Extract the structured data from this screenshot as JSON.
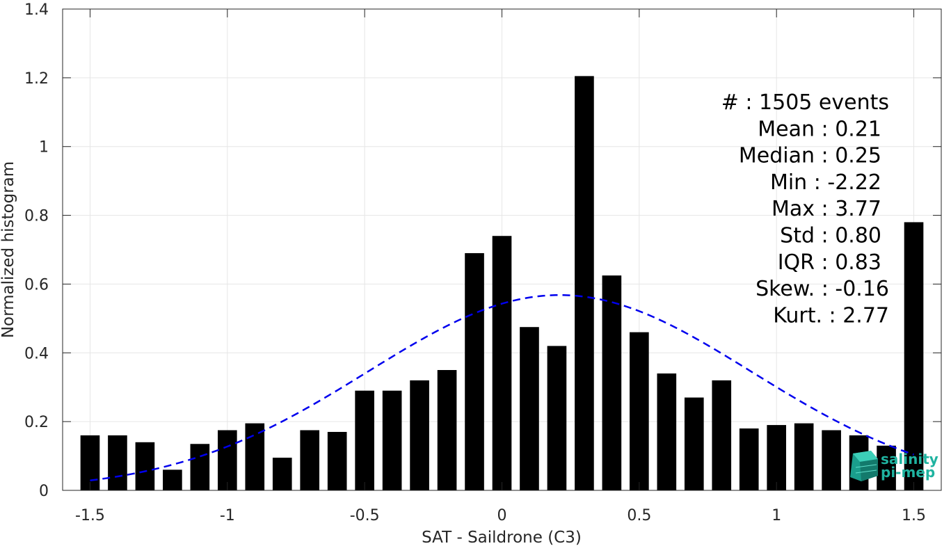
{
  "chart_data": {
    "type": "bar",
    "xlabel": "SAT - Saildrone (C3)",
    "ylabel": "Normalized histogram",
    "xlim": [
      -1.6,
      1.6
    ],
    "ylim": [
      0,
      1.4
    ],
    "xticks": [
      -1.5,
      -1,
      -0.5,
      0,
      0.5,
      1,
      1.5
    ],
    "xtick_labels": [
      "-1.5",
      "-1",
      "-0.5",
      "0",
      "0.5",
      "1",
      "1.5"
    ],
    "yticks": [
      0,
      0.2,
      0.4,
      0.6,
      0.8,
      1,
      1.2,
      1.4
    ],
    "ytick_labels": [
      "0",
      "0.2",
      "0.4",
      "0.6",
      "0.8",
      "1",
      "1.2",
      "1.4"
    ],
    "grid": true,
    "bar_width": 0.07,
    "bars": {
      "x": [
        -1.5,
        -1.4,
        -1.3,
        -1.2,
        -1.1,
        -1.0,
        -0.9,
        -0.8,
        -0.7,
        -0.6,
        -0.5,
        -0.4,
        -0.3,
        -0.2,
        -0.1,
        0.0,
        0.1,
        0.2,
        0.3,
        0.4,
        0.5,
        0.6,
        0.7,
        0.8,
        0.9,
        1.0,
        1.1,
        1.2,
        1.3,
        1.4,
        1.5
      ],
      "values": [
        0.16,
        0.16,
        0.14,
        0.06,
        0.135,
        0.175,
        0.195,
        0.095,
        0.175,
        0.17,
        0.29,
        0.29,
        0.32,
        0.35,
        0.69,
        0.74,
        0.475,
        0.42,
        1.205,
        0.625,
        0.46,
        0.34,
        0.27,
        0.32,
        0.18,
        0.19,
        0.195,
        0.175,
        0.16,
        0.13,
        0.78
      ],
      "color": "#000000"
    },
    "fit_curve": {
      "style": "dashed",
      "color": "#0000ee",
      "mean": 0.21,
      "std": 0.7,
      "peak": 0.568,
      "x_range": [
        -1.5,
        1.5
      ]
    },
    "stats": [
      {
        "label": "#  : 1505 events"
      },
      {
        "label": "Mean : 0.21"
      },
      {
        "label": "Median : 0.25"
      },
      {
        "label": "Min : -2.22"
      },
      {
        "label": "Max : 3.77"
      },
      {
        "label": "Std : 0.80"
      },
      {
        "label": "IQR : 0.83"
      },
      {
        "label": "Skew. : -0.16"
      },
      {
        "label": "Kurt. : 2.77"
      }
    ]
  },
  "logo": {
    "line1": "salinity",
    "line2": "pi-mep",
    "color": "#1fb3a0"
  }
}
